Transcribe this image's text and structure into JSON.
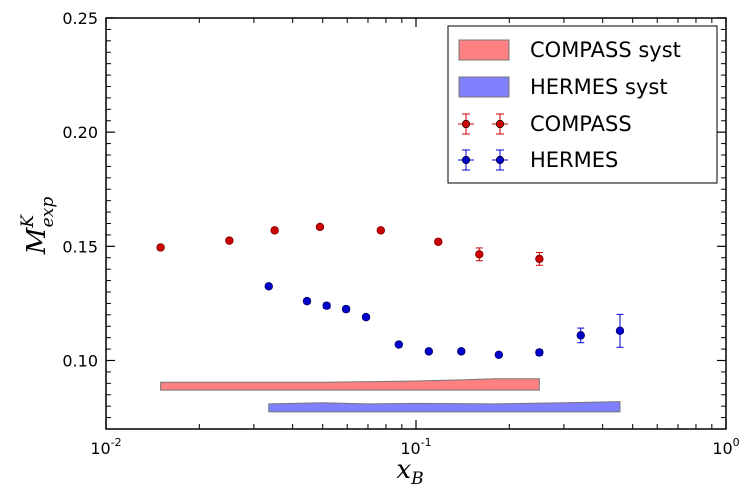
{
  "chart_data": {
    "type": "scatter",
    "title": "",
    "xlabel": "x",
    "xlabel_sub": "B",
    "ylabel": "M",
    "ylabel_sup": "K",
    "ylabel_sub": "exp",
    "xscale": "log",
    "xlim": [
      0.01,
      1.0
    ],
    "ylim": [
      0.07,
      0.25
    ],
    "x_ticks": [
      {
        "value": 0.01,
        "base": "10",
        "exp": "-2"
      },
      {
        "value": 0.1,
        "base": "10",
        "exp": "-1"
      },
      {
        "value": 1.0,
        "base": "10",
        "exp": "0"
      }
    ],
    "y_ticks": [
      {
        "value": 0.1,
        "label": "0.10"
      },
      {
        "value": 0.15,
        "label": "0.15"
      },
      {
        "value": 0.2,
        "label": "0.20"
      },
      {
        "value": 0.25,
        "label": "0.25"
      }
    ],
    "grid": false,
    "legend_position": "top-right",
    "legend": [
      {
        "label": "COMPASS syst",
        "kind": "band",
        "color": "#ff8080"
      },
      {
        "label": "HERMES syst",
        "kind": "band",
        "color": "#8080ff"
      },
      {
        "label": "COMPASS",
        "kind": "points",
        "color": "#cc0000"
      },
      {
        "label": "HERMES",
        "kind": "points",
        "color": "#0000cc"
      }
    ],
    "series": [
      {
        "name": "COMPASS",
        "color": "#cc0000",
        "edge_color": "#800000",
        "errbar_color": "#cc0000",
        "points": [
          {
            "x": 0.015,
            "y": 0.1495,
            "yerr": 0.0008
          },
          {
            "x": 0.025,
            "y": 0.1525,
            "yerr": 0.0008
          },
          {
            "x": 0.035,
            "y": 0.157,
            "yerr": 0.0008
          },
          {
            "x": 0.049,
            "y": 0.1585,
            "yerr": 0.0008
          },
          {
            "x": 0.077,
            "y": 0.157,
            "yerr": 0.0008
          },
          {
            "x": 0.118,
            "y": 0.152,
            "yerr": 0.0009
          },
          {
            "x": 0.16,
            "y": 0.1465,
            "yerr": 0.0028
          },
          {
            "x": 0.25,
            "y": 0.1445,
            "yerr": 0.0028
          }
        ]
      },
      {
        "name": "HERMES",
        "color": "#0000cc",
        "edge_color": "#000066",
        "errbar_color": "#0000cc",
        "points": [
          {
            "x": 0.0335,
            "y": 0.1325,
            "yerr": 0.0008
          },
          {
            "x": 0.0445,
            "y": 0.126,
            "yerr": 0.001
          },
          {
            "x": 0.0515,
            "y": 0.124,
            "yerr": 0.0012
          },
          {
            "x": 0.0595,
            "y": 0.1225,
            "yerr": 0.0012
          },
          {
            "x": 0.069,
            "y": 0.119,
            "yerr": 0.001
          },
          {
            "x": 0.088,
            "y": 0.107,
            "yerr": 0.0008
          },
          {
            "x": 0.11,
            "y": 0.104,
            "yerr": 0.0008
          },
          {
            "x": 0.14,
            "y": 0.104,
            "yerr": 0.0008
          },
          {
            "x": 0.185,
            "y": 0.1025,
            "yerr": 0.0008
          },
          {
            "x": 0.25,
            "y": 0.1035,
            "yerr": 0.0012
          },
          {
            "x": 0.34,
            "y": 0.111,
            "yerr": 0.0032
          },
          {
            "x": 0.455,
            "y": 0.113,
            "yerr": 0.0072
          }
        ]
      }
    ],
    "systematic_bands": [
      {
        "name": "COMPASS syst",
        "fill": "#ff8080",
        "stroke": "#777777",
        "upper": [
          [
            0.015,
            0.0905
          ],
          [
            0.025,
            0.0905
          ],
          [
            0.05,
            0.0905
          ],
          [
            0.1,
            0.091
          ],
          [
            0.14,
            0.0915
          ],
          [
            0.18,
            0.092
          ],
          [
            0.25,
            0.092
          ]
        ],
        "lower": [
          [
            0.015,
            0.087
          ],
          [
            0.025,
            0.087
          ],
          [
            0.05,
            0.087
          ],
          [
            0.1,
            0.087
          ],
          [
            0.14,
            0.087
          ],
          [
            0.18,
            0.087
          ],
          [
            0.25,
            0.087
          ]
        ]
      },
      {
        "name": "HERMES syst",
        "fill": "#8080ff",
        "stroke": "#777777",
        "upper": [
          [
            0.0335,
            0.081
          ],
          [
            0.05,
            0.0815
          ],
          [
            0.07,
            0.081
          ],
          [
            0.1,
            0.0812
          ],
          [
            0.18,
            0.081
          ],
          [
            0.3,
            0.0815
          ],
          [
            0.455,
            0.082
          ]
        ],
        "lower": [
          [
            0.0335,
            0.0775
          ],
          [
            0.07,
            0.0775
          ],
          [
            0.1,
            0.0775
          ],
          [
            0.18,
            0.0775
          ],
          [
            0.3,
            0.0775
          ],
          [
            0.455,
            0.0775
          ]
        ]
      }
    ]
  }
}
